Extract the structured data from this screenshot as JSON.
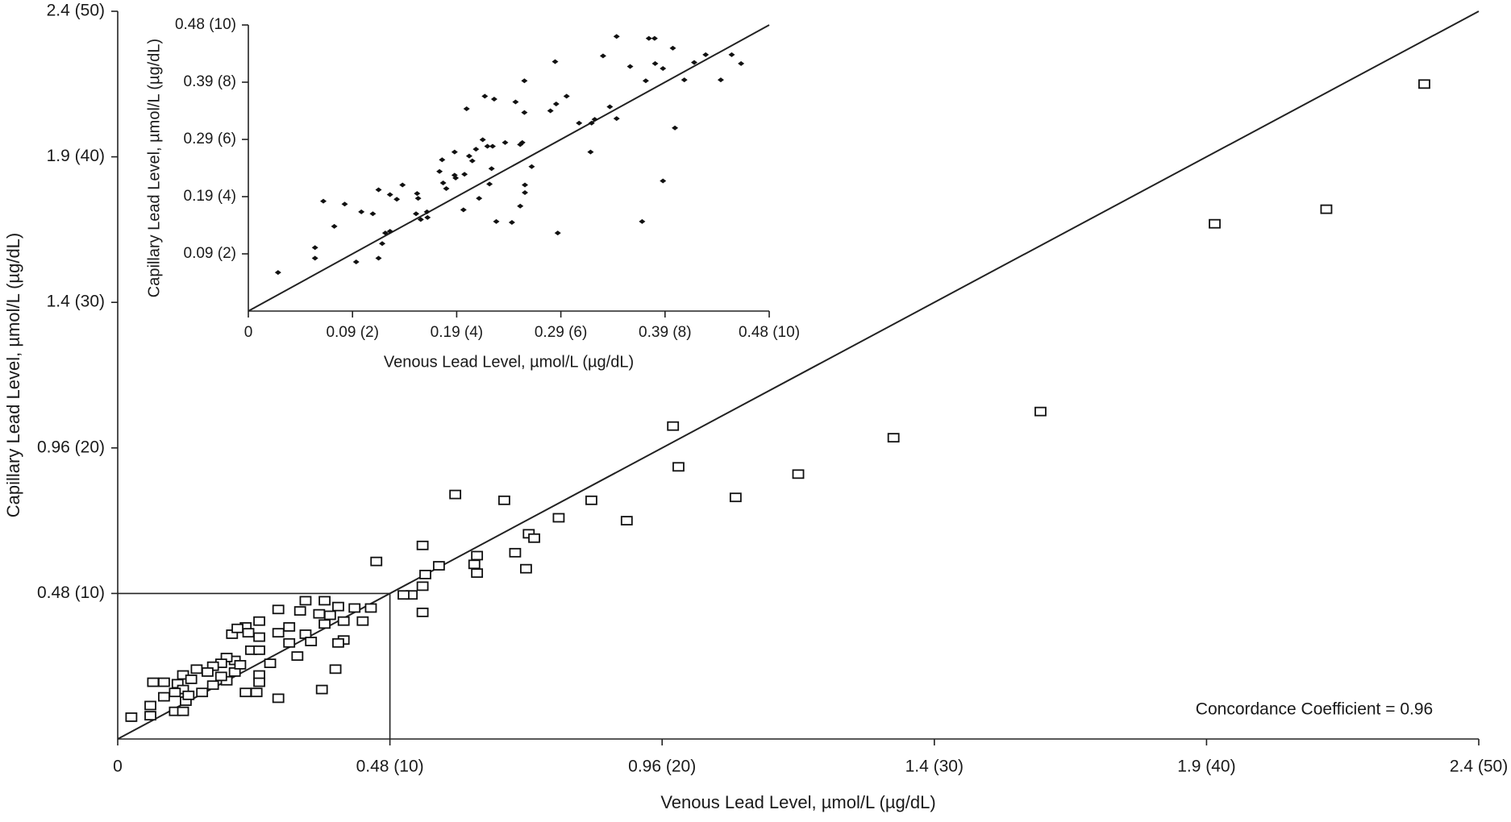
{
  "chart_data": [
    {
      "type": "scatter",
      "x_label": "Venous Lead Level, µmol/L (µg/dL)",
      "y_label": "Capillary Lead Level, µmol/L (µg/dL)",
      "annotation": "Concordance Coefficient = 0.96",
      "xlim": [
        0,
        50
      ],
      "ylim": [
        0,
        50
      ],
      "xticks": [
        0,
        {
          "value": 10,
          "label": "0.48 (10)"
        },
        {
          "value": 20,
          "label": "0.96 (20)"
        },
        {
          "value": 30,
          "label": "1.4 (30)"
        },
        {
          "value": 40,
          "label": "1.9 (40)"
        },
        {
          "value": 50,
          "label": "2.4 (50)"
        }
      ],
      "yticks": [
        {
          "value": 10,
          "label": "0.48 (10)"
        },
        {
          "value": 20,
          "label": "0.96 (20)"
        },
        {
          "value": 30,
          "label": "1.4 (30)"
        },
        {
          "value": 40,
          "label": "1.9 (40)"
        },
        {
          "value": 50,
          "label": "2.4 (50)"
        }
      ],
      "marker": "hollow-square",
      "color": "#111111",
      "identity_line": true,
      "reference_line": 10,
      "x": [
        48.0,
        44.4,
        40.3,
        33.9,
        28.5,
        25.0,
        22.7,
        20.4,
        20.6,
        18.7,
        17.4,
        16.2,
        14.2,
        12.4,
        15.1,
        15.3,
        14.6,
        15.0,
        13.2,
        13.1,
        13.2,
        11.8,
        11.2,
        11.3,
        11.2,
        11.2,
        9.5,
        10.8,
        10.5,
        9.3,
        9.0,
        8.7,
        8.3,
        8.1,
        7.6,
        6.9,
        6.7,
        7.4,
        7.8,
        5.9,
        5.2,
        4.7,
        4.2,
        4.4,
        4.8,
        5.2,
        6.3,
        5.9,
        6.9,
        7.6,
        8.3,
        7.1,
        6.3,
        8.1,
        4.9,
        5.2,
        5.6,
        6.6,
        4.3,
        4.0,
        3.8,
        3.5,
        3.3,
        2.9,
        2.4,
        2.7,
        2.2,
        2.4,
        2.1,
        1.7,
        1.3,
        1.7,
        2.5,
        2.6,
        3.1,
        3.5,
        4.0,
        4.3,
        4.5,
        5.2,
        5.2,
        5.1,
        4.7,
        5.9,
        8.0,
        7.5,
        2.1,
        2.4,
        1.2,
        1.2,
        0.5,
        3.8
      ],
      "values": [
        45.0,
        36.4,
        35.4,
        22.5,
        20.7,
        18.2,
        16.6,
        21.5,
        18.7,
        15.0,
        16.4,
        15.2,
        16.4,
        16.8,
        14.1,
        13.8,
        12.8,
        11.7,
        12.6,
        12.0,
        11.4,
        11.9,
        13.3,
        11.3,
        10.5,
        8.7,
        12.2,
        9.9,
        9.9,
        9.0,
        8.1,
        9.0,
        8.1,
        9.1,
        9.5,
        9.5,
        8.8,
        8.6,
        8.5,
        8.9,
        8.1,
        7.7,
        7.2,
        7.6,
        7.3,
        7.0,
        7.7,
        7.3,
        7.2,
        7.9,
        6.8,
        6.7,
        6.6,
        6.6,
        6.1,
        6.1,
        5.2,
        5.7,
        5.4,
        5.6,
        5.2,
        5.0,
        4.6,
        4.8,
        4.4,
        4.1,
        3.8,
        3.4,
        3.2,
        3.9,
        3.9,
        2.9,
        2.6,
        3.0,
        3.2,
        3.7,
        4.0,
        4.6,
        5.1,
        4.4,
        3.9,
        3.2,
        3.2,
        2.8,
        4.8,
        3.4,
        1.9,
        1.9,
        2.3,
        1.6,
        1.5,
        4.3
      ]
    },
    {
      "type": "scatter",
      "x_label": "Venous Lead Level, µmol/L (µg/dL)",
      "y_label": "Capillary Lead Level, µmol/L (µg/dL)",
      "xlim": [
        0,
        10
      ],
      "ylim": [
        0,
        10
      ],
      "xticks": [
        0,
        {
          "value": 2,
          "label": "0.09 (2)"
        },
        {
          "value": 4,
          "label": "0.19 (4)"
        },
        {
          "value": 6,
          "label": "0.29 (6)"
        },
        {
          "value": 8,
          "label": "0.39 (8)"
        },
        {
          "value": 10,
          "label": "0.48 (10)"
        }
      ],
      "yticks": [
        {
          "value": 2,
          "label": "0.09 (2)"
        },
        {
          "value": 4,
          "label": "0.19 (4)"
        },
        {
          "value": 6,
          "label": "0.29 (6)"
        },
        {
          "value": 8,
          "label": "0.39 (8)"
        },
        {
          "value": 10,
          "label": "0.48 (10)"
        }
      ],
      "marker": "filled-diamond",
      "color": "#111111",
      "identity_line": true,
      "x": [
        0.57,
        1.28,
        1.28,
        1.44,
        1.65,
        1.85,
        2.07,
        2.17,
        2.39,
        2.5,
        2.5,
        2.57,
        2.63,
        2.72,
        2.72,
        2.85,
        2.96,
        3.24,
        3.26,
        3.22,
        3.31,
        3.43,
        3.44,
        3.67,
        3.72,
        3.74,
        3.8,
        3.96,
        3.96,
        3.98,
        4.13,
        4.15,
        4.24,
        4.3,
        4.37,
        4.43,
        4.5,
        4.54,
        4.63,
        4.67,
        4.59,
        4.69,
        4.72,
        4.76,
        4.19,
        4.93,
        5.06,
        5.13,
        5.22,
        5.22,
        5.26,
        5.31,
        5.31,
        5.44,
        5.3,
        5.3,
        5.8,
        5.91,
        5.89,
        5.94,
        6.11,
        6.35,
        6.57,
        6.59,
        6.65,
        6.81,
        6.94,
        7.07,
        7.07,
        7.33,
        7.56,
        7.63,
        7.69,
        7.8,
        7.81,
        7.96,
        7.96,
        8.15,
        8.19,
        8.37,
        8.56,
        8.78,
        9.07,
        9.28,
        9.46
      ],
      "values": [
        1.35,
        2.22,
        1.85,
        3.84,
        2.96,
        3.74,
        1.72,
        3.47,
        3.4,
        4.24,
        1.85,
        2.36,
        2.73,
        2.79,
        4.07,
        3.91,
        4.41,
        4.11,
        3.94,
        3.4,
        3.2,
        3.47,
        3.27,
        4.88,
        5.29,
        4.48,
        4.28,
        4.75,
        5.56,
        4.65,
        3.54,
        4.78,
        5.42,
        5.25,
        5.66,
        3.94,
        5.99,
        7.51,
        4.44,
        4.98,
        5.76,
        5.76,
        7.41,
        3.13,
        7.07,
        5.89,
        3.1,
        7.31,
        5.82,
        3.67,
        5.89,
        4.41,
        4.14,
        5.05,
        6.94,
        8.05,
        7.0,
        7.24,
        8.72,
        2.73,
        7.51,
        6.57,
        5.56,
        6.57,
        6.7,
        8.92,
        7.14,
        6.73,
        9.6,
        8.55,
        3.13,
        8.05,
        9.53,
        9.53,
        8.65,
        4.55,
        8.48,
        9.19,
        6.4,
        8.08,
        8.69,
        8.96,
        8.08,
        8.96,
        8.65
      ]
    }
  ]
}
